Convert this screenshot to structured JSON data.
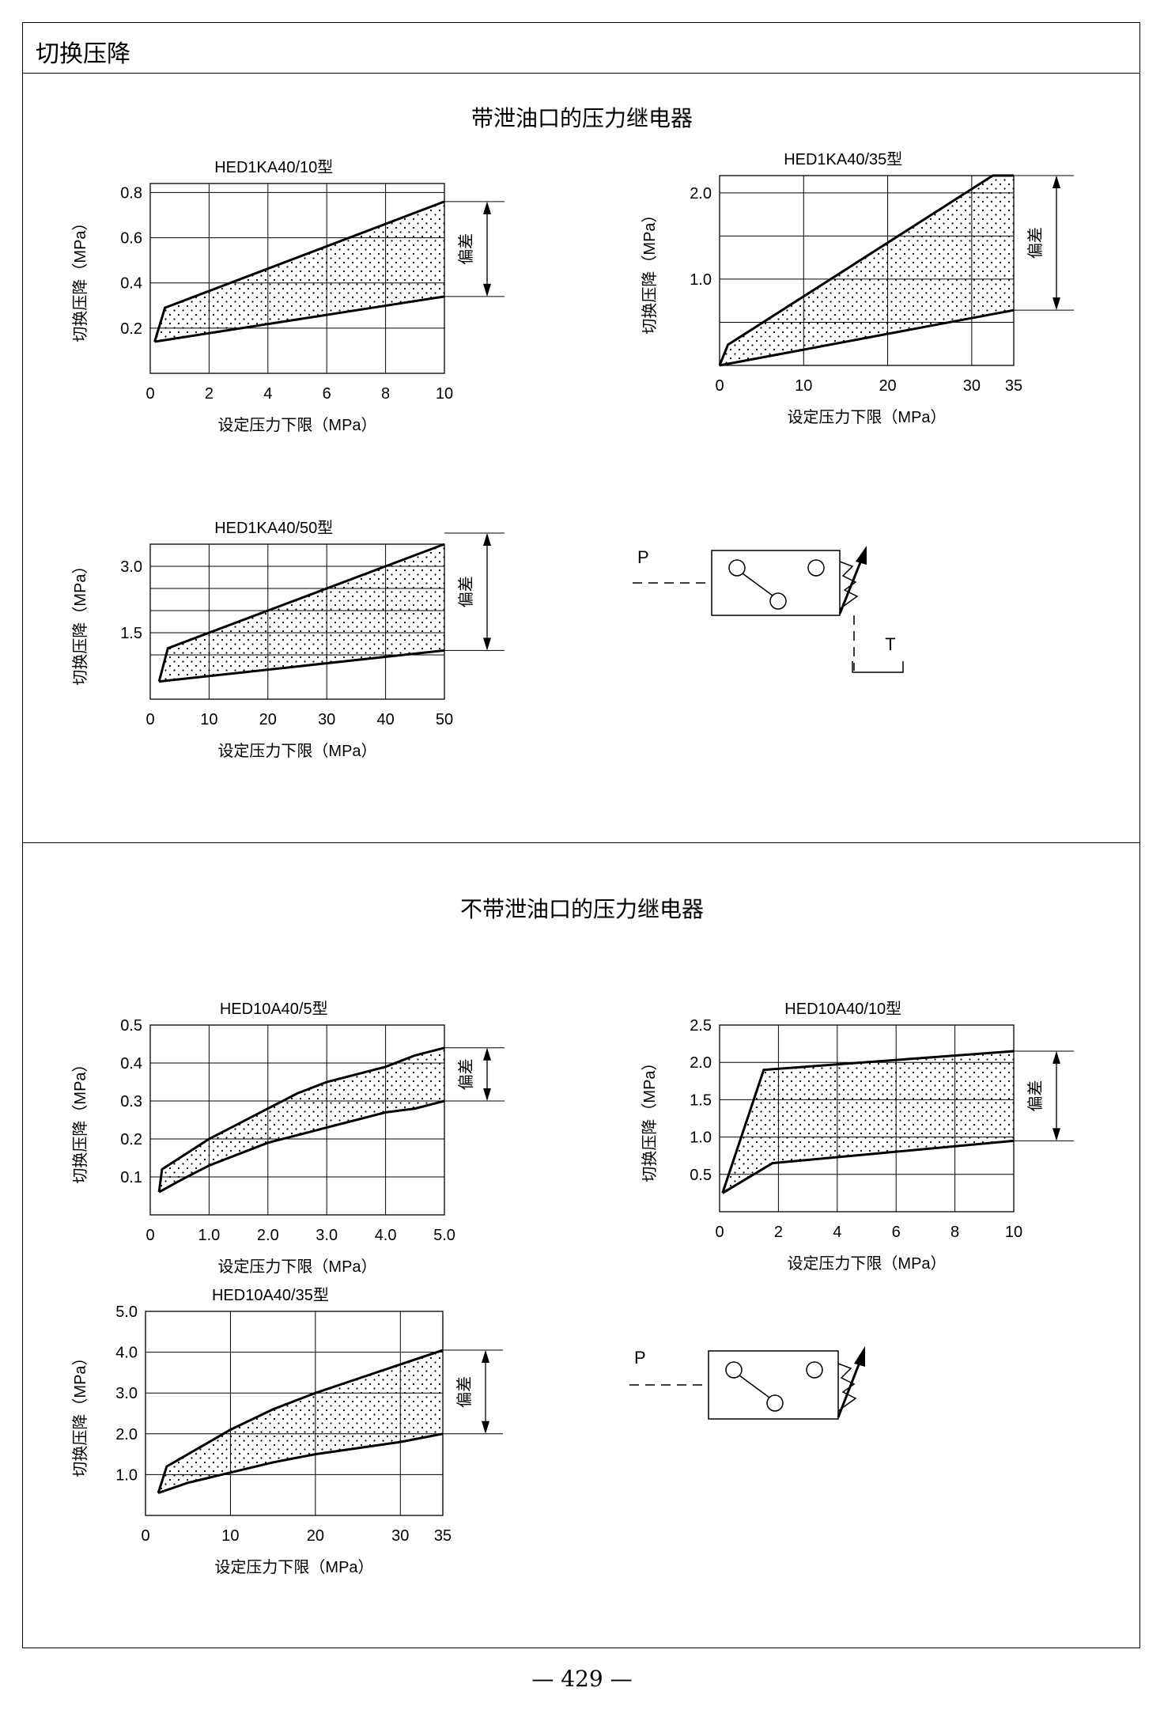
{
  "page": {
    "title": "切换压降",
    "page_number": "— 429 —"
  },
  "sections": [
    {
      "heading": "带泄油口的压力继电器"
    },
    {
      "heading": "不带泄油口的压力继电器"
    }
  ],
  "symbols": [
    {
      "p_label": "P",
      "t_label": "T"
    },
    {
      "p_label": "P"
    }
  ],
  "chart_data": [
    {
      "type": "area",
      "title": "HED1KA40/10型",
      "xlabel": "设定压力下限（MPa）",
      "ylabel": "切换压降（MPa）",
      "deviation_label": "偏差",
      "xlim": [
        0,
        10
      ],
      "ylim": [
        0,
        0.84
      ],
      "xticks": [
        0,
        2,
        4,
        6,
        8,
        10
      ],
      "xtick_labels": [
        "0",
        "2",
        "4",
        "6",
        "8",
        "10"
      ],
      "yticks": [
        0.2,
        0.4,
        0.6,
        0.8
      ],
      "ytick_labels": [
        "0.2",
        "0.4",
        "0.6",
        "0.8"
      ],
      "xgrid": [
        0,
        2,
        4,
        6,
        8,
        10
      ],
      "ygrid": [
        0.2,
        0.4,
        0.6,
        0.8
      ],
      "grid": true,
      "series": [
        {
          "values": [
            [
              0.15,
              0.14
            ],
            [
              0.5,
              0.29
            ],
            [
              10,
              0.76
            ]
          ]
        },
        {
          "values": [
            [
              0.15,
              0.14
            ],
            [
              10,
              0.34
            ]
          ]
        }
      ],
      "deviation": [
        0.34,
        0.76
      ]
    },
    {
      "type": "area",
      "title": "HED1KA40/35型",
      "xlabel": "设定压力下限（MPa）",
      "ylabel": "切换压降（MPa）",
      "deviation_label": "偏差",
      "xlim": [
        0,
        35
      ],
      "ylim": [
        0,
        2.2
      ],
      "xticks": [
        0,
        10,
        20,
        30,
        35
      ],
      "xtick_labels": [
        "0",
        "10",
        "20",
        "30",
        "35"
      ],
      "yticks": [
        1.0,
        2.0
      ],
      "ytick_labels": [
        "1.0",
        "2.0"
      ],
      "xgrid": [
        0,
        10,
        20,
        30,
        35
      ],
      "ygrid": [
        0.5,
        1.0,
        1.5,
        2.0
      ],
      "grid": true,
      "series": [
        {
          "values": [
            [
              0,
              0
            ],
            [
              1,
              0.24
            ],
            [
              32.5,
              2.2
            ],
            [
              35,
              2.2
            ]
          ]
        },
        {
          "values": [
            [
              0,
              0
            ],
            [
              35,
              0.64
            ]
          ]
        }
      ],
      "deviation": [
        0.64,
        2.2
      ]
    },
    {
      "type": "area",
      "title": "HED1KA40/50型",
      "xlabel": "设定压力下限（MPa）",
      "ylabel": "切换压降（MPa）",
      "deviation_label": "偏差",
      "xlim": [
        0,
        50
      ],
      "ylim": [
        0,
        3.5
      ],
      "xticks": [
        0,
        10,
        20,
        30,
        40,
        50
      ],
      "xtick_labels": [
        "0",
        "10",
        "20",
        "30",
        "40",
        "50"
      ],
      "yticks": [
        1.5,
        3.0
      ],
      "ytick_labels": [
        "1.5",
        "3.0"
      ],
      "xgrid": [
        0,
        10,
        20,
        30,
        40,
        50
      ],
      "ygrid": [
        1.0,
        1.5,
        2.0,
        2.5,
        3.0
      ],
      "grid": true,
      "series": [
        {
          "values": [
            [
              1.5,
              0.4
            ],
            [
              3,
              1.15
            ],
            [
              50,
              3.75
            ]
          ]
        },
        {
          "values": [
            [
              1.5,
              0.4
            ],
            [
              50,
              1.1
            ]
          ]
        }
      ],
      "deviation": [
        1.1,
        3.75
      ]
    },
    {
      "type": "area",
      "title": "HED10A40/5型",
      "xlabel": "设定压力下限（MPa）",
      "ylabel": "切换压降（MPa）",
      "deviation_label": "偏差",
      "xlim": [
        0,
        5.0
      ],
      "ylim": [
        0,
        0.5
      ],
      "xticks": [
        0,
        1.0,
        2.0,
        3.0,
        4.0,
        5.0
      ],
      "xtick_labels": [
        "0",
        "1.0",
        "2.0",
        "3.0",
        "4.0",
        "5.0"
      ],
      "yticks": [
        0.1,
        0.2,
        0.3,
        0.4,
        0.5
      ],
      "ytick_labels": [
        "0.1",
        "0.2",
        "0.3",
        "0.4",
        "0.5"
      ],
      "xgrid": [
        0,
        1.0,
        2.0,
        3.0,
        4.0,
        5.0
      ],
      "ygrid": [
        0.1,
        0.2,
        0.3,
        0.4,
        0.5
      ],
      "grid": true,
      "series": [
        {
          "values": [
            [
              0.15,
              0.06
            ],
            [
              0.2,
              0.12
            ],
            [
              0.5,
              0.15
            ],
            [
              1.0,
              0.2
            ],
            [
              1.5,
              0.24
            ],
            [
              2.0,
              0.28
            ],
            [
              2.5,
              0.32
            ],
            [
              3.0,
              0.35
            ],
            [
              3.5,
              0.37
            ],
            [
              4.0,
              0.39
            ],
            [
              4.5,
              0.42
            ],
            [
              5.0,
              0.44
            ]
          ]
        },
        {
          "values": [
            [
              0.15,
              0.06
            ],
            [
              0.5,
              0.09
            ],
            [
              1.0,
              0.13
            ],
            [
              1.5,
              0.16
            ],
            [
              2.0,
              0.19
            ],
            [
              2.5,
              0.21
            ],
            [
              3.0,
              0.23
            ],
            [
              3.5,
              0.25
            ],
            [
              4.0,
              0.27
            ],
            [
              4.5,
              0.28
            ],
            [
              5.0,
              0.3
            ]
          ]
        }
      ],
      "deviation": [
        0.3,
        0.44
      ]
    },
    {
      "type": "area",
      "title": "HED10A40/10型",
      "xlabel": "设定压力下限（MPa）",
      "ylabel": "切换压降（MPa）",
      "deviation_label": "偏差",
      "xlim": [
        0,
        10
      ],
      "ylim": [
        0,
        2.5
      ],
      "xticks": [
        0,
        2,
        4,
        6,
        8,
        10
      ],
      "xtick_labels": [
        "0",
        "2",
        "4",
        "6",
        "8",
        "10"
      ],
      "yticks": [
        0.5,
        1.0,
        1.5,
        2.0,
        2.5
      ],
      "ytick_labels": [
        "0.5",
        "1.0",
        "1.5",
        "2.0",
        "2.5"
      ],
      "xgrid": [
        0,
        2,
        4,
        6,
        8,
        10
      ],
      "ygrid": [
        0.5,
        1.0,
        1.5,
        2.0,
        2.5
      ],
      "grid": true,
      "series": [
        {
          "values": [
            [
              0.1,
              0.25
            ],
            [
              1.5,
              1.9
            ],
            [
              10,
              2.15
            ]
          ]
        },
        {
          "values": [
            [
              0.1,
              0.25
            ],
            [
              1.8,
              0.65
            ],
            [
              10,
              0.95
            ]
          ]
        }
      ],
      "deviation": [
        0.95,
        2.15
      ]
    },
    {
      "type": "area",
      "title": "HED10A40/35型",
      "xlabel": "设定压力下限（MPa）",
      "ylabel": "切换压降（MPa）",
      "deviation_label": "偏差",
      "xlim": [
        0,
        35
      ],
      "ylim": [
        0,
        5.0
      ],
      "xticks": [
        0,
        10,
        20,
        30,
        35
      ],
      "xtick_labels": [
        "0",
        "10",
        "20",
        "30",
        "35"
      ],
      "yticks": [
        1.0,
        2.0,
        3.0,
        4.0,
        5.0
      ],
      "ytick_labels": [
        "1.0",
        "2.0",
        "3.0",
        "4.0",
        "5.0"
      ],
      "xgrid": [
        0,
        10,
        20,
        30,
        35
      ],
      "ygrid": [
        1.0,
        2.0,
        3.0,
        4.0
      ],
      "grid": true,
      "series": [
        {
          "values": [
            [
              1.5,
              0.55
            ],
            [
              2.5,
              1.2
            ],
            [
              5,
              1.5
            ],
            [
              10,
              2.1
            ],
            [
              15,
              2.6
            ],
            [
              20,
              3.0
            ],
            [
              25,
              3.35
            ],
            [
              30,
              3.7
            ],
            [
              35,
              4.05
            ]
          ]
        },
        {
          "values": [
            [
              1.5,
              0.55
            ],
            [
              5,
              0.8
            ],
            [
              10,
              1.05
            ],
            [
              15,
              1.3
            ],
            [
              20,
              1.5
            ],
            [
              25,
              1.65
            ],
            [
              30,
              1.8
            ],
            [
              35,
              2.0
            ]
          ]
        }
      ],
      "deviation": [
        2.0,
        4.05
      ]
    }
  ]
}
